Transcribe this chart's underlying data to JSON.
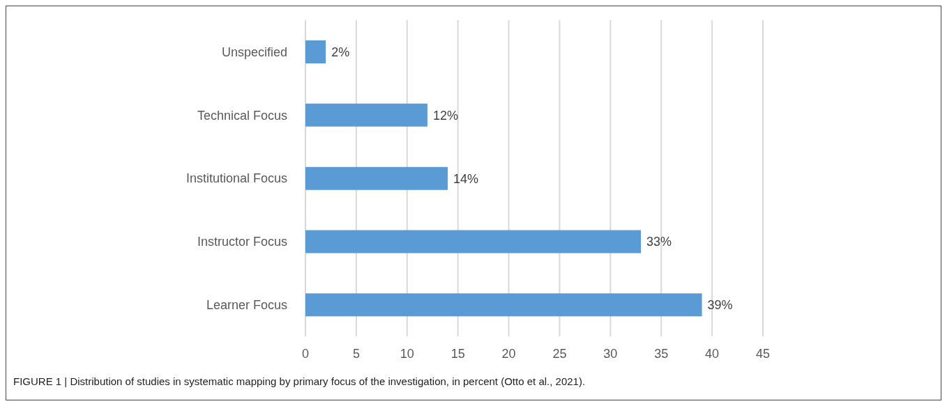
{
  "chart_data": {
    "type": "bar",
    "orientation": "horizontal",
    "categories": [
      "Unspecified",
      "Technical Focus",
      "Institutional Focus",
      "Instructor Focus",
      "Learner Focus"
    ],
    "values": [
      2,
      12,
      14,
      33,
      39
    ],
    "value_labels": [
      "2%",
      "12%",
      "14%",
      "33%",
      "39%"
    ],
    "color": "#5b9bd5",
    "xlim": [
      0,
      45
    ],
    "xticks": [
      0,
      5,
      10,
      15,
      20,
      25,
      30,
      35,
      40,
      45
    ],
    "grid": "x",
    "legend": false,
    "annotations": [
      "FIGURE 1 | Distribution of studies in systematic mapping by primary focus of the investigation, in percent (Otto et al., 2021)."
    ]
  }
}
